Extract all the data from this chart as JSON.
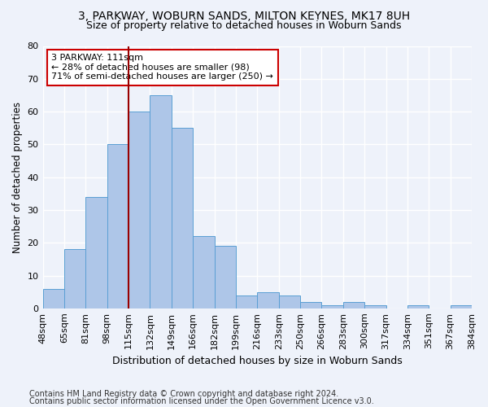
{
  "title1": "3, PARKWAY, WOBURN SANDS, MILTON KEYNES, MK17 8UH",
  "title2": "Size of property relative to detached houses in Woburn Sands",
  "xlabel": "Distribution of detached houses by size in Woburn Sands",
  "ylabel": "Number of detached properties",
  "footnote1": "Contains HM Land Registry data © Crown copyright and database right 2024.",
  "footnote2": "Contains public sector information licensed under the Open Government Licence v3.0.",
  "bin_labels": [
    "48sqm",
    "65sqm",
    "81sqm",
    "98sqm",
    "115sqm",
    "132sqm",
    "149sqm",
    "166sqm",
    "182sqm",
    "199sqm",
    "216sqm",
    "233sqm",
    "250sqm",
    "266sqm",
    "283sqm",
    "300sqm",
    "317sqm",
    "334sqm",
    "351sqm",
    "367sqm",
    "384sqm"
  ],
  "bar_heights": [
    6,
    18,
    34,
    50,
    60,
    65,
    55,
    22,
    19,
    4,
    5,
    4,
    2,
    1,
    2,
    1,
    0,
    1,
    0,
    1
  ],
  "bar_color": "#aec6e8",
  "bar_edge_color": "#5a9fd4",
  "vline_x": 4.0,
  "vline_color": "#990000",
  "annotation_text": "3 PARKWAY: 111sqm\n← 28% of detached houses are smaller (98)\n71% of semi-detached houses are larger (250) →",
  "annotation_box_color": "white",
  "annotation_box_edge": "#cc0000",
  "ylim": [
    0,
    80
  ],
  "yticks": [
    0,
    10,
    20,
    30,
    40,
    50,
    60,
    70,
    80
  ],
  "background_color": "#eef2fa",
  "grid_color": "#ffffff",
  "title1_fontsize": 10,
  "title2_fontsize": 9,
  "xlabel_fontsize": 9,
  "ylabel_fontsize": 8.5,
  "tick_fontsize": 8,
  "footnote_fontsize": 7
}
